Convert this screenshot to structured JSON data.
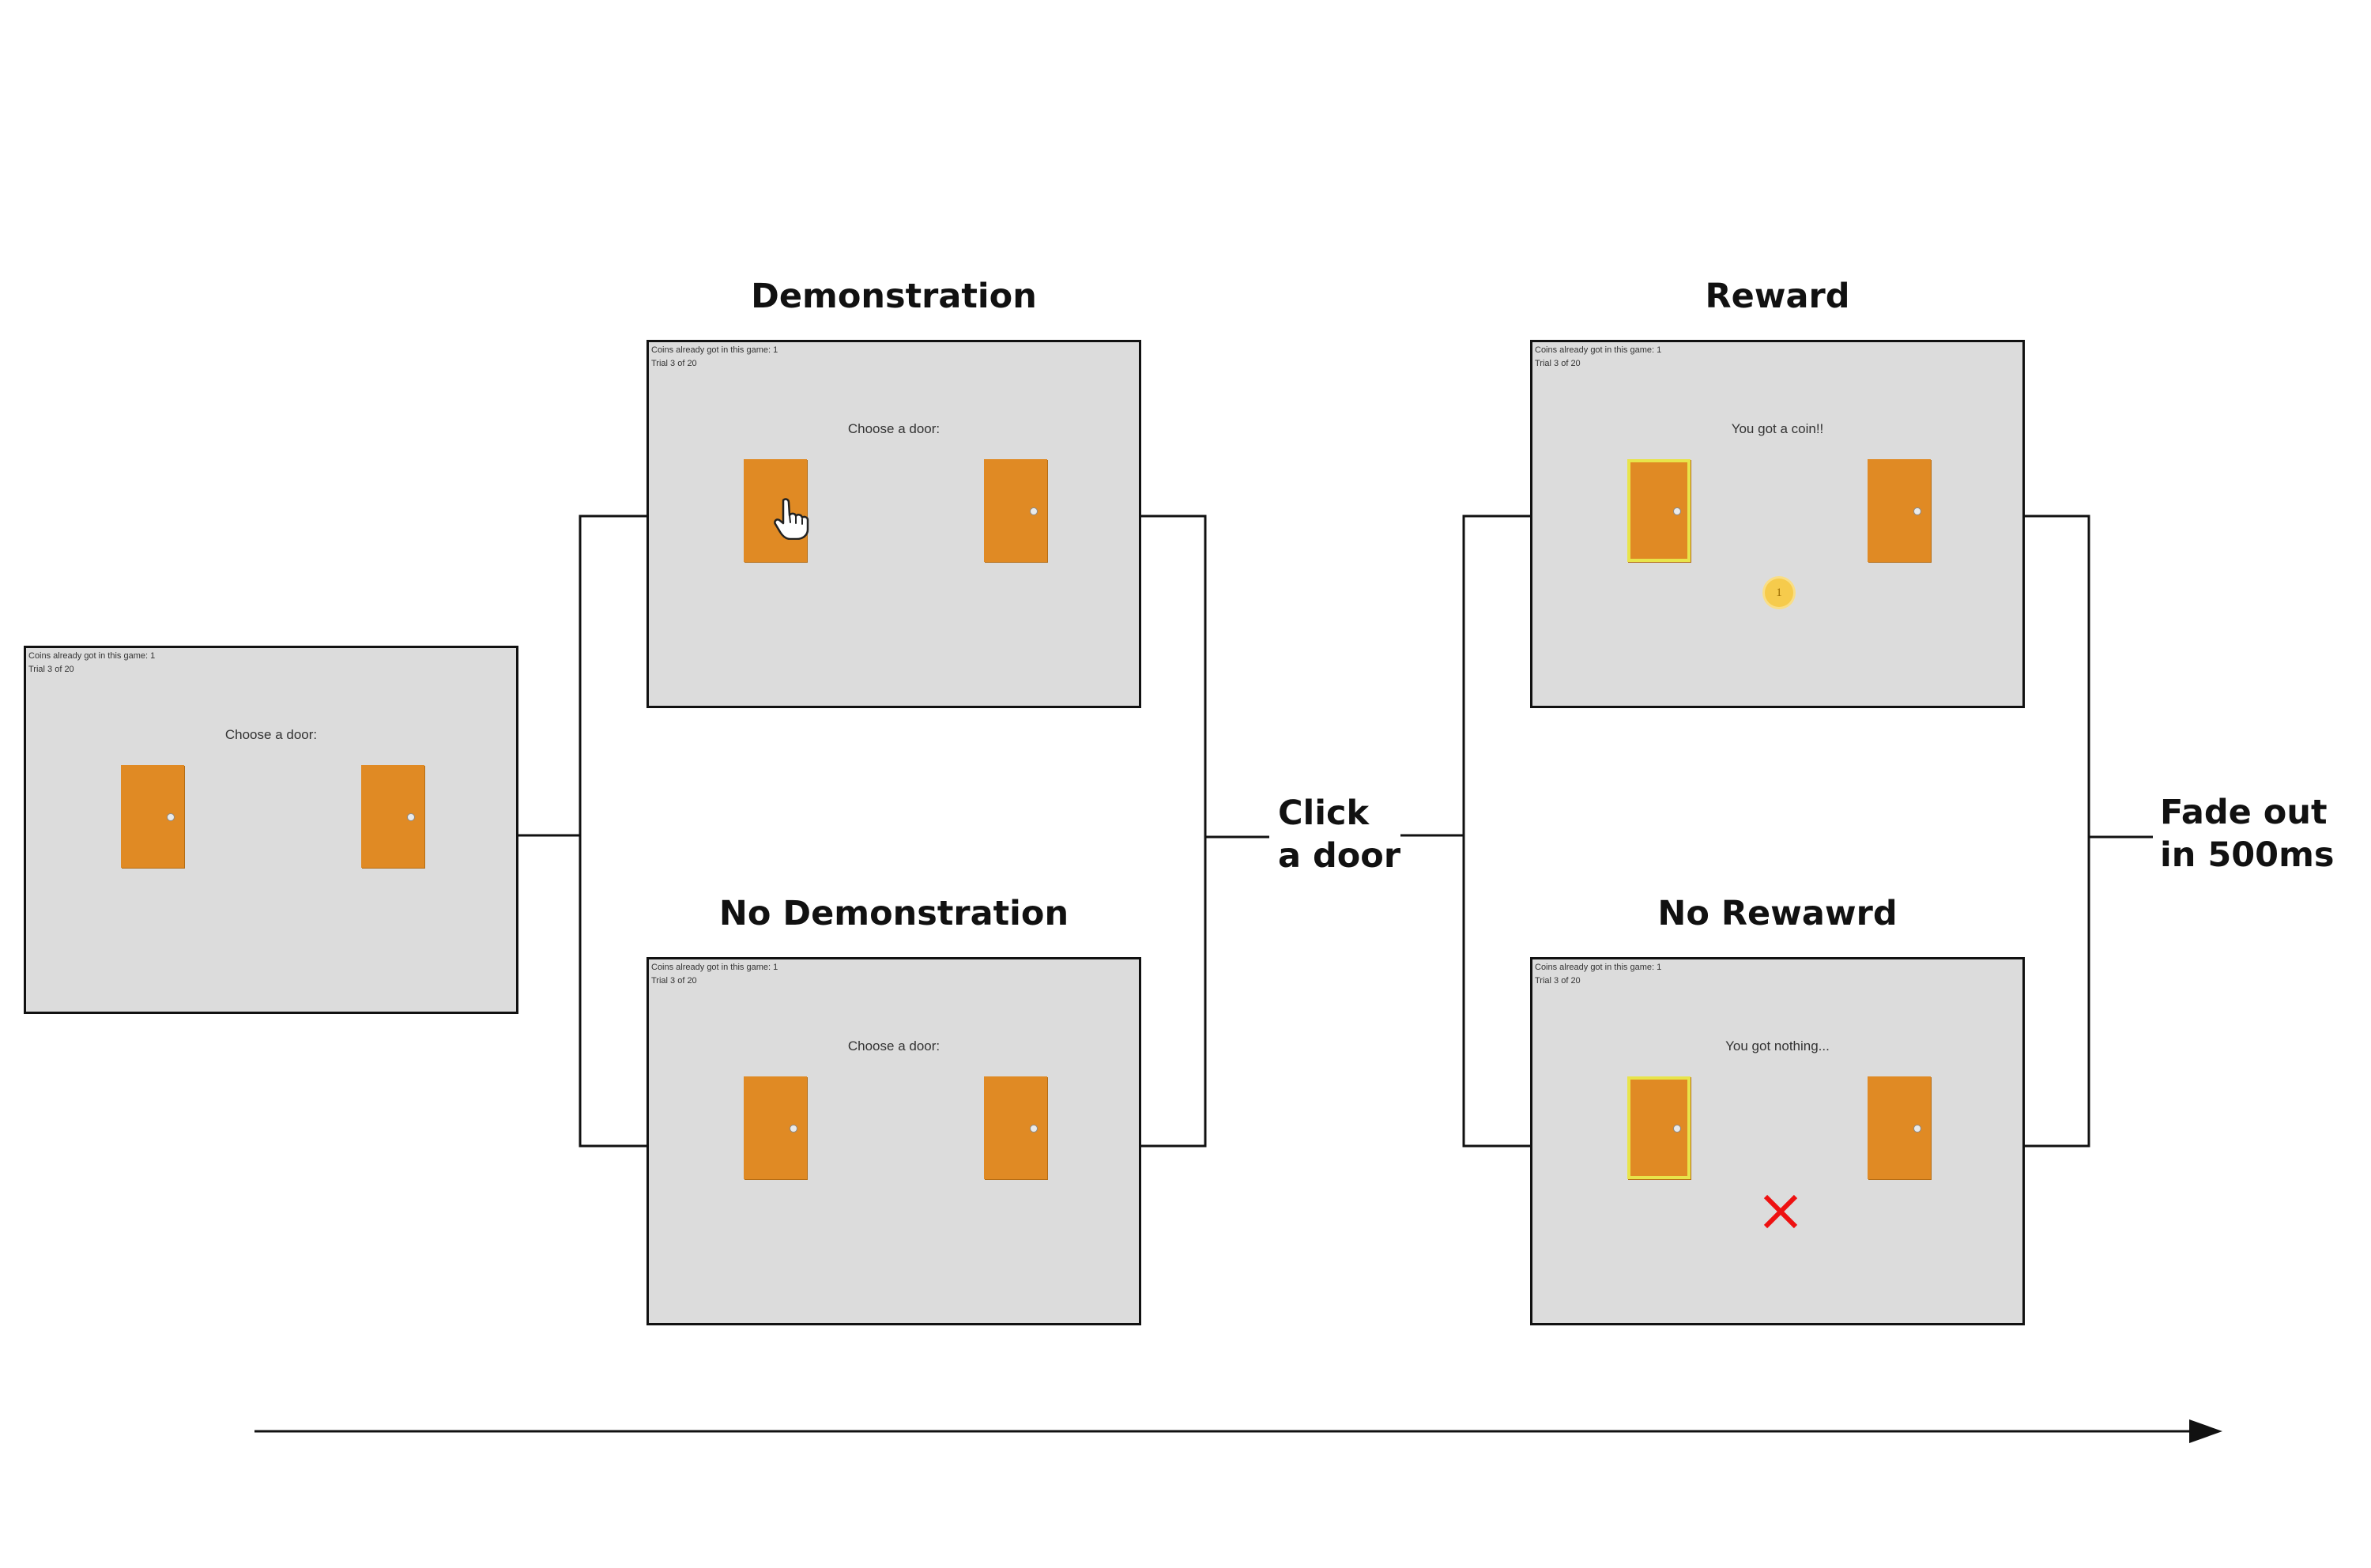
{
  "screen_info": {
    "coins_line": "Coins already got in this game: 1",
    "trial_line": "Trial 3 of 20"
  },
  "screens": {
    "initial": {
      "prompt": "Choose a door:"
    },
    "demonstration": {
      "title": "Demonstration",
      "prompt": "Choose a door:"
    },
    "no_demonstration": {
      "title": "No Demonstration",
      "prompt": "Choose a door:"
    },
    "reward": {
      "title": "Reward",
      "prompt": "You got a coin!!",
      "coin_label": "1"
    },
    "no_reward": {
      "title": "No Rewawrd",
      "prompt": "You got nothing..."
    }
  },
  "transitions": {
    "click_line1": "Click",
    "click_line2": "a door",
    "fade_line1": "Fade out",
    "fade_line2": "in 500ms"
  },
  "colors": {
    "screen_bg": "#dcdcdc",
    "door": "#e08a24",
    "selected_outline": "#e8e44a",
    "coin": "#f6cb4c",
    "cross": "#ee1111"
  },
  "icons": {
    "pointer": "hand-pointer-icon",
    "coin": "coin-icon",
    "fail": "cross-icon",
    "time": "arrow-right-icon"
  }
}
